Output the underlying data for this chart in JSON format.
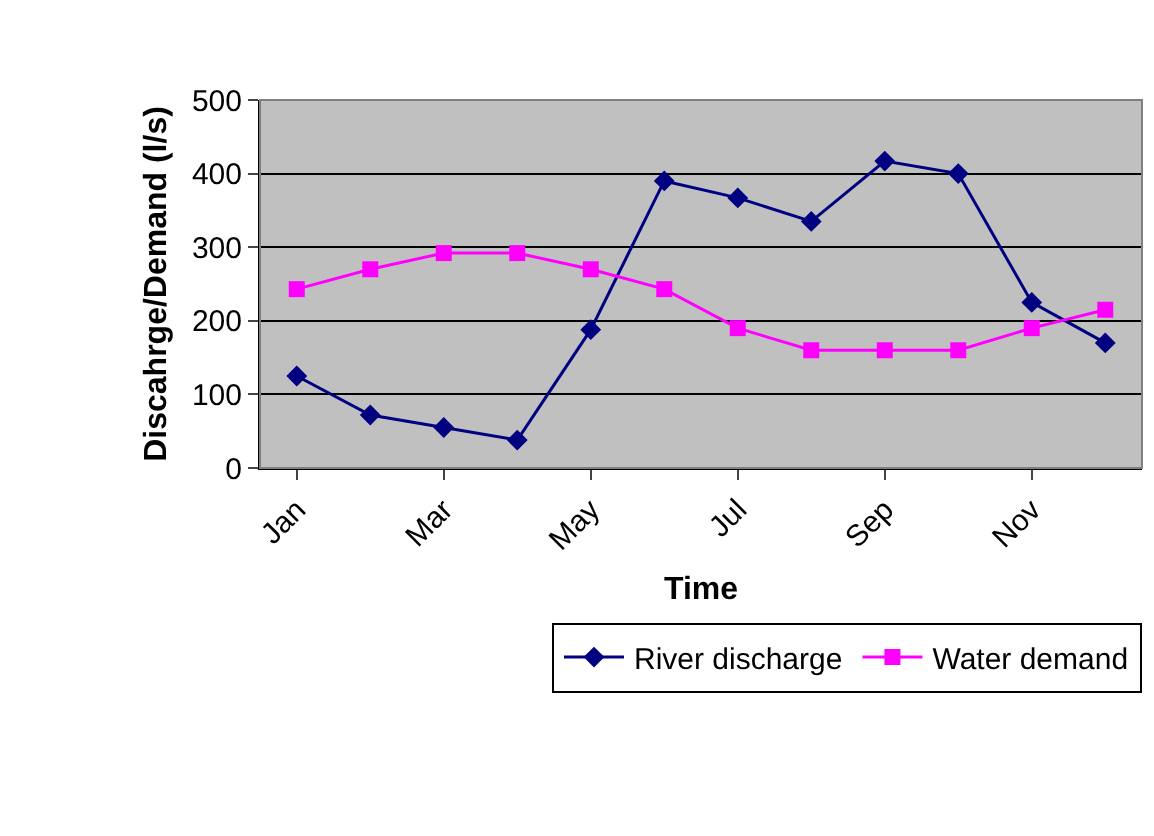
{
  "chart_data": {
    "type": "line",
    "xlabel": "Time",
    "ylabel": "Discahrge/Demand (l/s)",
    "categories": [
      "Jan",
      null,
      "Mar",
      null,
      "May",
      null,
      "Jul",
      null,
      "Sep",
      null,
      "Nov",
      null
    ],
    "series": [
      {
        "name": "River discharge",
        "color": "#000080",
        "marker": "diamond",
        "values": [
          125,
          72,
          55,
          38,
          188,
          390,
          367,
          335,
          417,
          400,
          225,
          170
        ]
      },
      {
        "name": "Water demand",
        "color": "#ff00ff",
        "marker": "square",
        "values": [
          243,
          270,
          292,
          292,
          270,
          243,
          190,
          160,
          160,
          160,
          190,
          215
        ]
      }
    ],
    "ylim": [
      0,
      500
    ],
    "yticks": [
      0,
      100,
      200,
      300,
      400,
      500
    ],
    "grid": "y",
    "legend": "bottom",
    "line_style": "solid"
  }
}
